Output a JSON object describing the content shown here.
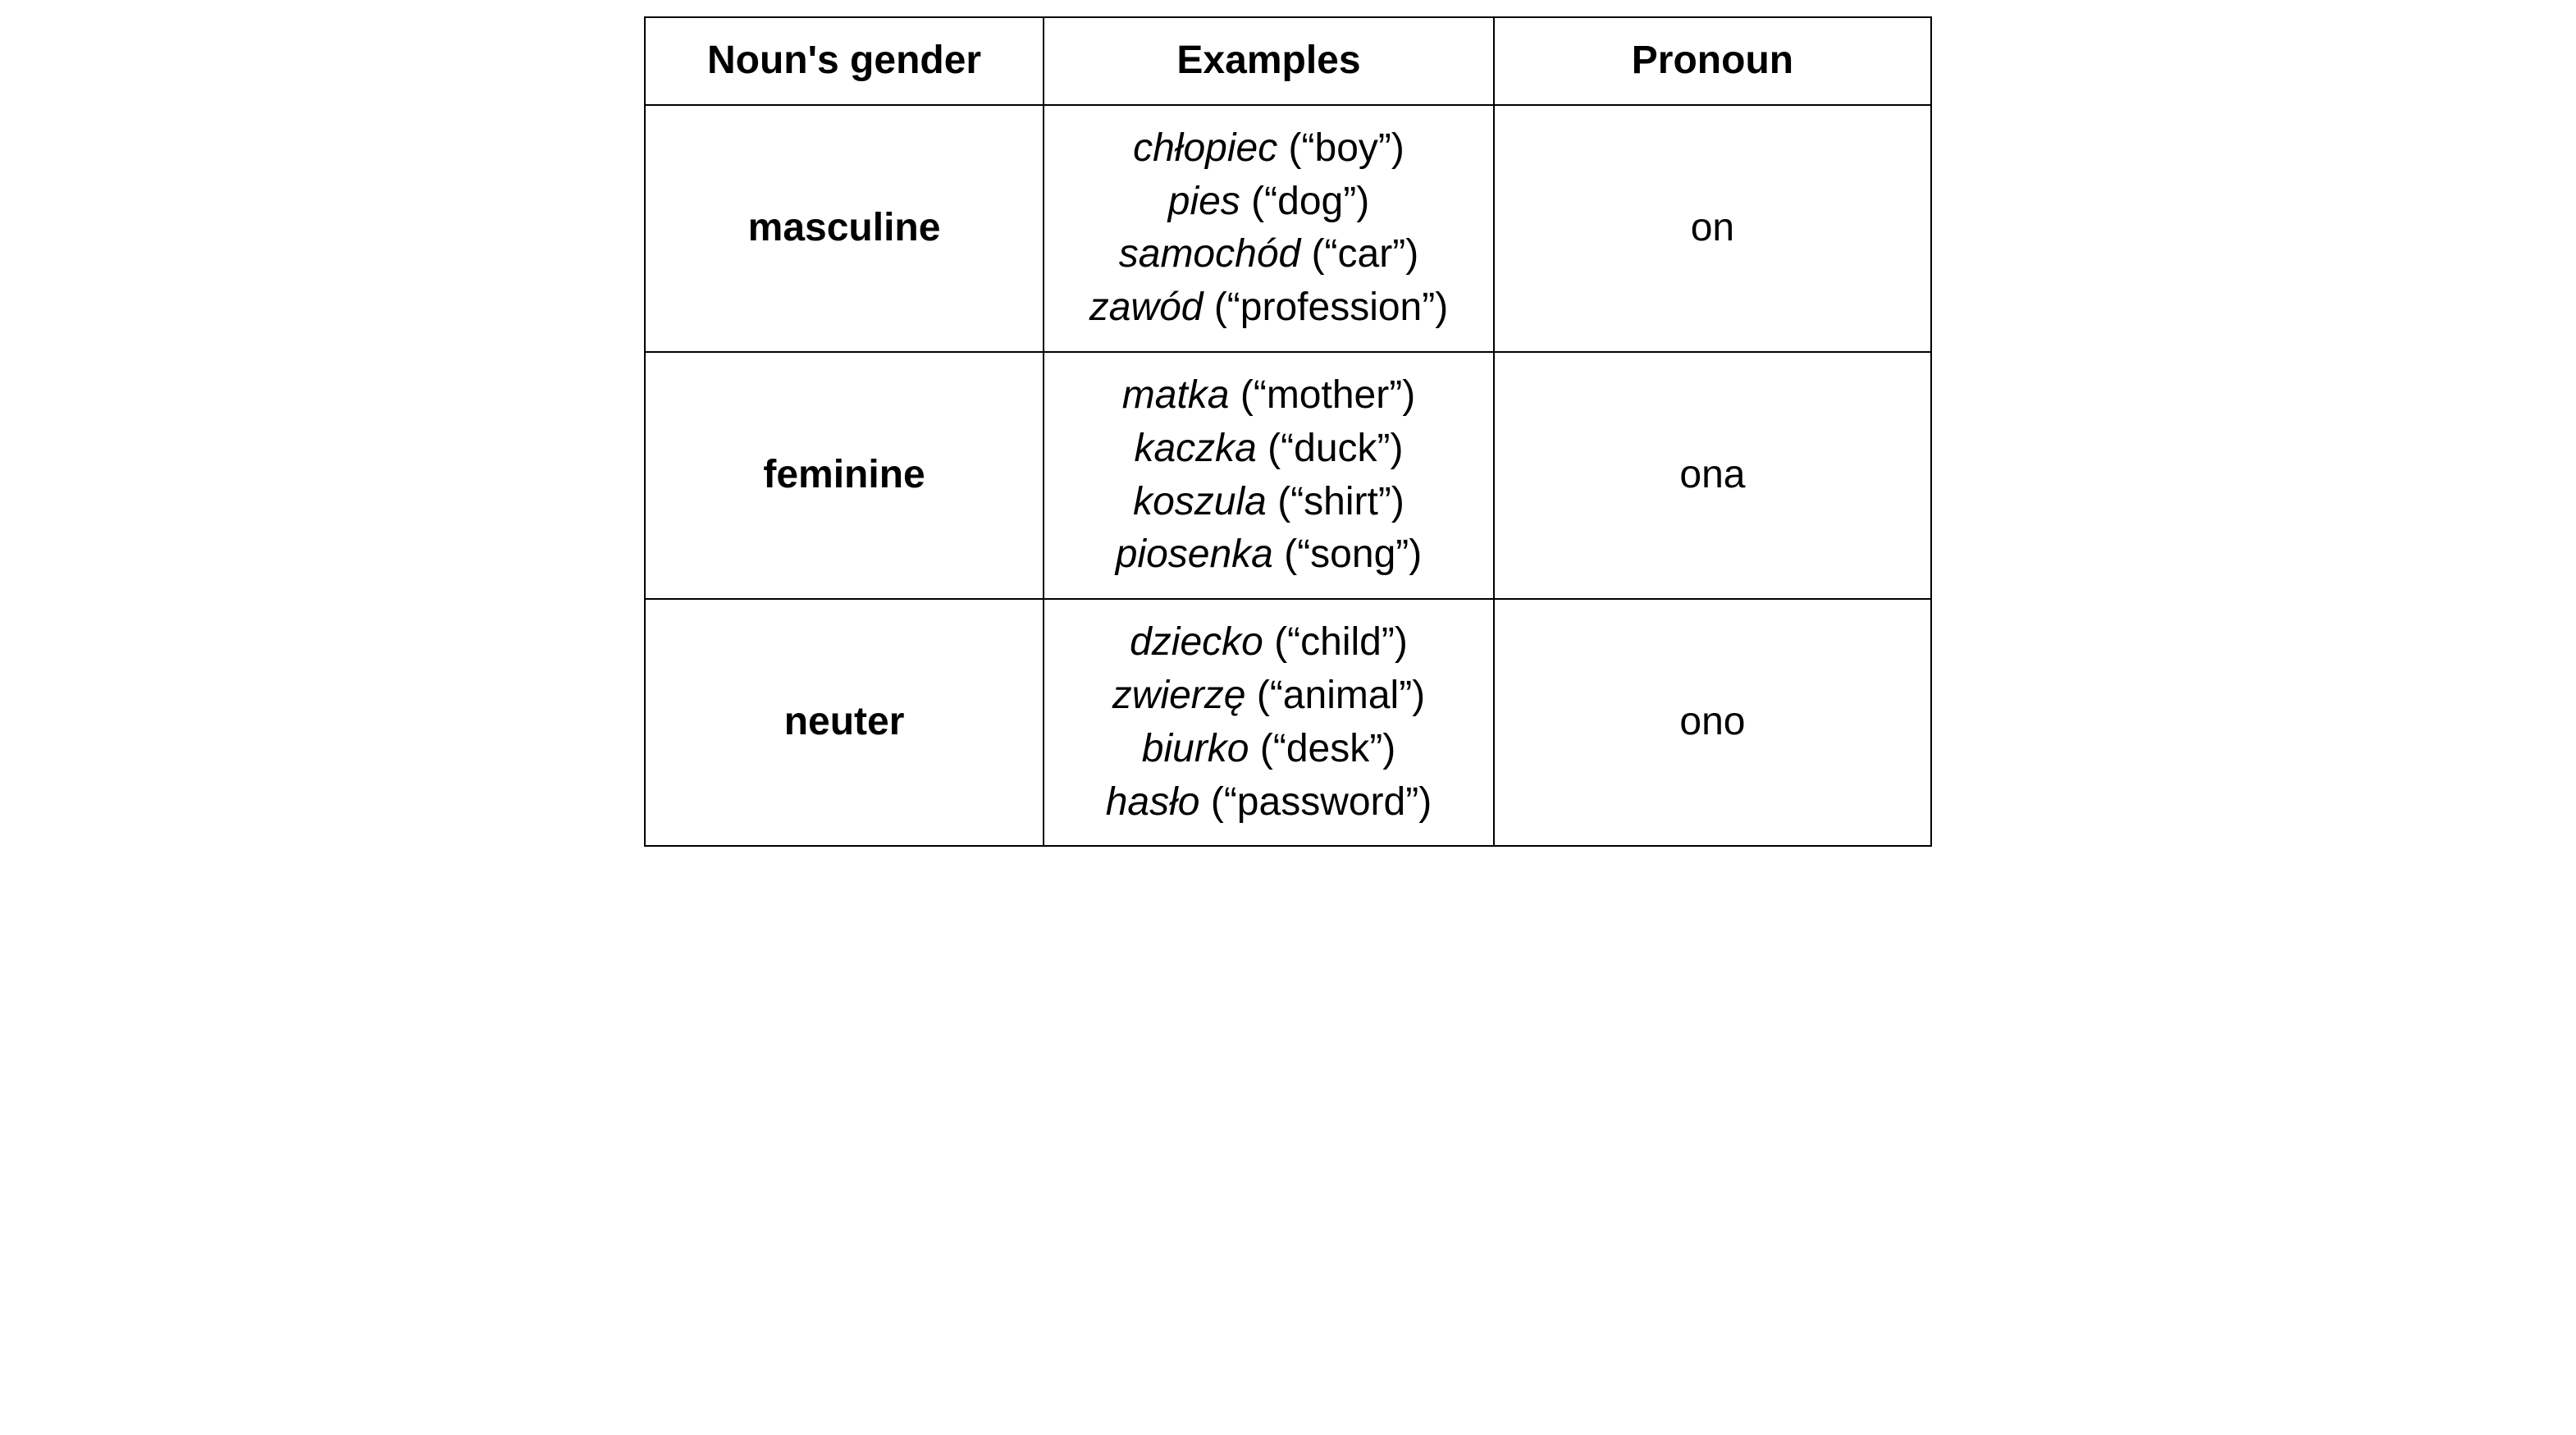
{
  "table": {
    "type": "table",
    "background_color": "#ffffff",
    "border_color": "#000000",
    "border_width": 2,
    "font_family": "Arial",
    "font_size": 48,
    "columns": [
      {
        "header": "Noun's gender",
        "width_pct": 31,
        "align": "center"
      },
      {
        "header": "Examples",
        "width_pct": 35,
        "align": "center"
      },
      {
        "header": "Pronoun",
        "width_pct": 34,
        "align": "center"
      }
    ],
    "rows": [
      {
        "gender": "masculine",
        "examples": [
          {
            "word": "chłopiec",
            "gloss": "(“boy”)"
          },
          {
            "word": "pies",
            "gloss": "(“dog”)"
          },
          {
            "word": "samochód",
            "gloss": "(“car”)"
          },
          {
            "word": "zawód",
            "gloss": "(“profession”)"
          }
        ],
        "pronoun": "on"
      },
      {
        "gender": "feminine",
        "examples": [
          {
            "word": "matka",
            "gloss": "(“mother”)"
          },
          {
            "word": "kaczka",
            "gloss": "(“duck”)"
          },
          {
            "word": "koszula",
            "gloss": "(“shirt”)"
          },
          {
            "word": "piosenka",
            "gloss": "(“song”)"
          }
        ],
        "pronoun": "ona"
      },
      {
        "gender": "neuter",
        "examples": [
          {
            "word": "dziecko",
            "gloss": "(“child”)"
          },
          {
            "word": "zwierzę",
            "gloss": "(“animal”)"
          },
          {
            "word": "biurko",
            "gloss": "(“desk”)"
          },
          {
            "word": "hasło",
            "gloss": "(“password”)"
          }
        ],
        "pronoun": "ono"
      }
    ]
  }
}
